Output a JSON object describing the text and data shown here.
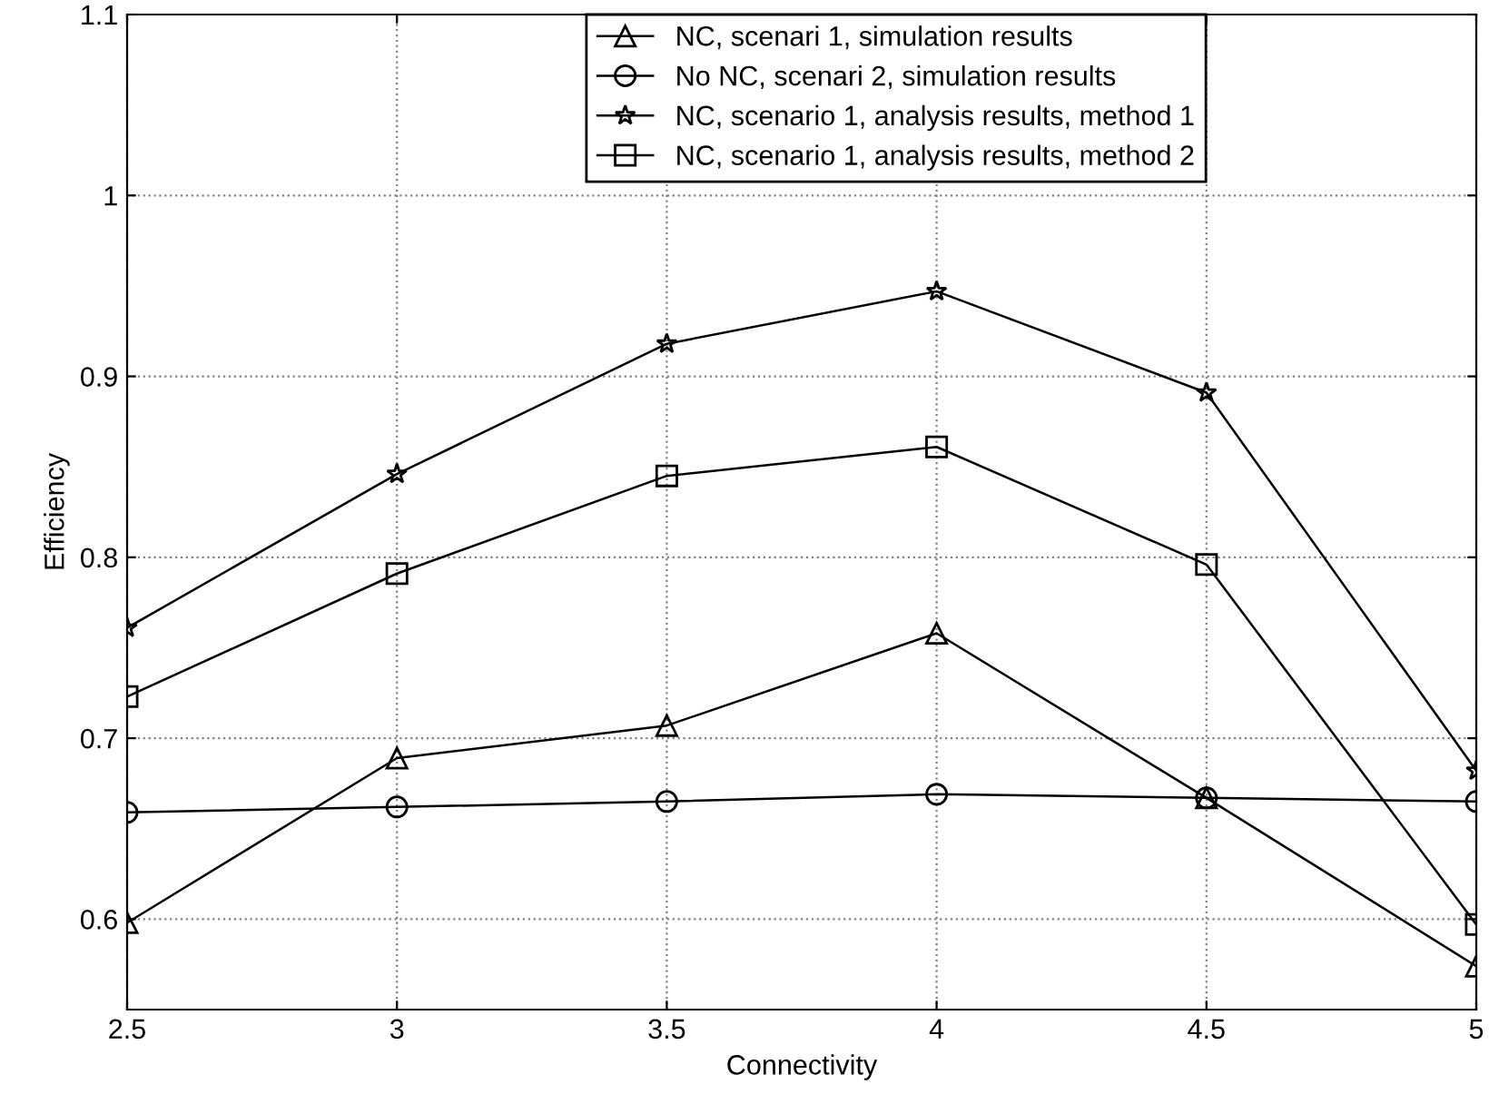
{
  "chart_data": {
    "type": "line",
    "xlabel": "Connectivity",
    "ylabel": "Efficiency",
    "x": [
      2.5,
      3,
      3.5,
      4,
      4.5,
      5
    ],
    "series": [
      {
        "name": "NC, scenari 1, simulation results",
        "color": "#000000",
        "marker": "triangle",
        "values": [
          0.598,
          0.689,
          0.707,
          0.758,
          0.667,
          0.574
        ]
      },
      {
        "name": "No NC, scenari 2, simulation results",
        "color": "#000000",
        "marker": "circle",
        "values": [
          0.659,
          0.662,
          0.665,
          0.669,
          0.667,
          0.665
        ]
      },
      {
        "name": "NC, scenario 1, analysis results, method 1",
        "color": "#000000",
        "marker": "star",
        "values": [
          0.761,
          0.846,
          0.918,
          0.947,
          0.891,
          0.682
        ]
      },
      {
        "name": "NC, scenario 1, analysis results, method 2",
        "color": "#000000",
        "marker": "square",
        "values": [
          0.723,
          0.791,
          0.845,
          0.861,
          0.796,
          0.597
        ]
      }
    ],
    "xlim": [
      2.5,
      5
    ],
    "xticks": [
      2.5,
      3,
      3.5,
      4,
      4.5,
      5
    ],
    "ylim": [
      0.55,
      1.1
    ],
    "yticks": [
      0.6,
      0.7,
      0.8,
      0.9,
      1,
      1.1
    ],
    "grid": true,
    "legend": "top",
    "line_style": "solid"
  }
}
